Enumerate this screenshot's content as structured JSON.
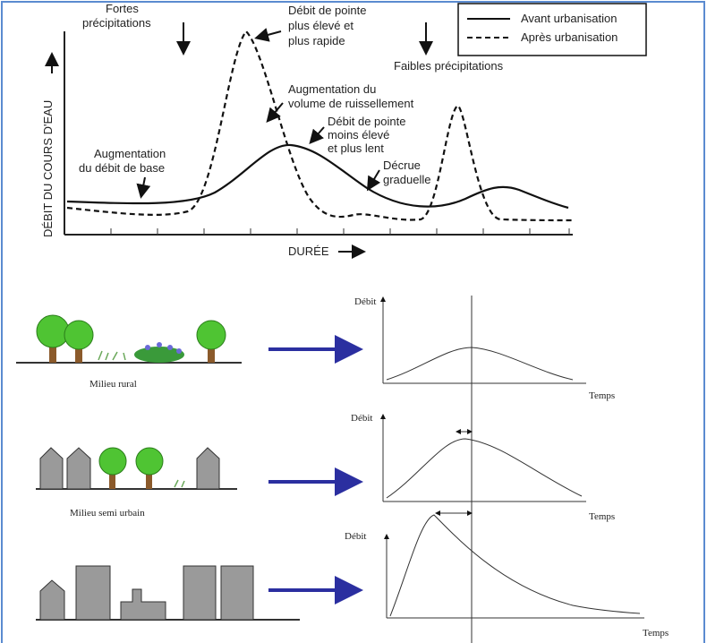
{
  "top_chart": {
    "legend": [
      "Avant urbanisation",
      "Après urbanisation"
    ],
    "y_axis_label": "DÉBIT DU COURS D'EAU",
    "x_axis_label": "DURÉE",
    "annotations": {
      "heavy_rain": [
        "Fortes",
        "précipitations"
      ],
      "higher_peak": [
        "Débit de pointe",
        "plus élevé et",
        "plus rapide"
      ],
      "light_rain": [
        "Faibles précipitations"
      ],
      "runoff": [
        "Augmentation du",
        "volume de ruissellement"
      ],
      "lower_peak": [
        "Débit de pointe",
        "moins élevé",
        "et plus lent"
      ],
      "base_flow": [
        "Augmentation",
        "du débit de base"
      ],
      "recession": [
        "Décrue",
        "graduelle"
      ]
    }
  },
  "panels": [
    {
      "label": "Milieu rural",
      "y_label": "Débit",
      "x_label": "Temps"
    },
    {
      "label": "Milieu semi urbain",
      "y_label": "Débit",
      "x_label": "Temps"
    },
    {
      "y_label": "Débit",
      "x_label": "Temps"
    }
  ]
}
